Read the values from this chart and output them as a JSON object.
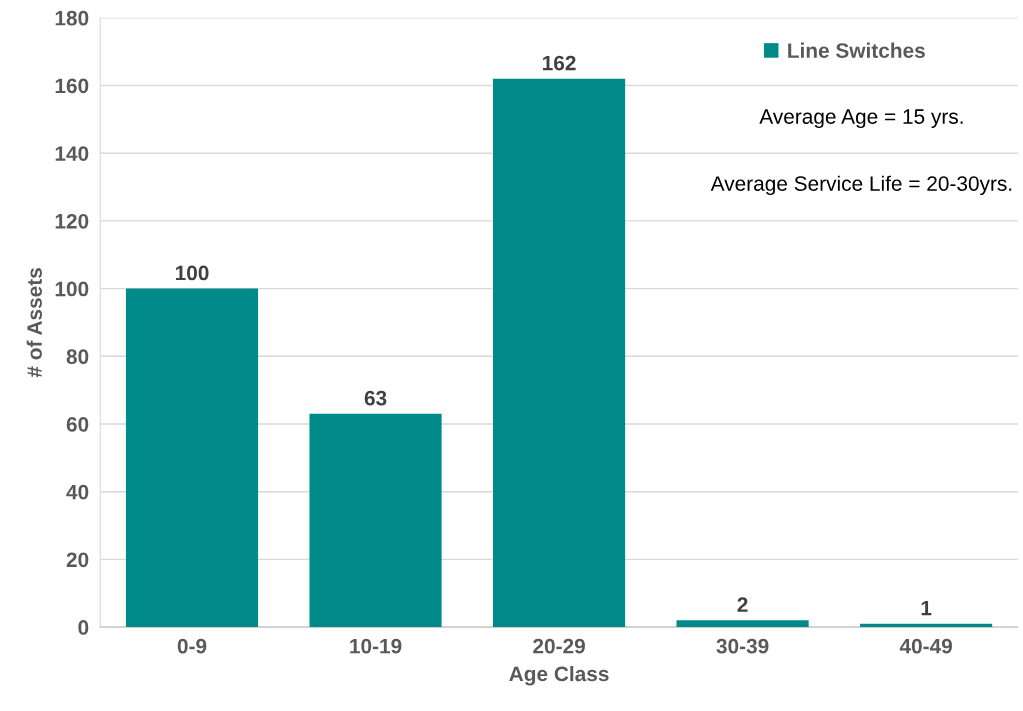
{
  "chart_data": {
    "type": "bar",
    "xlabel": "Age Class",
    "ylabel": "# of Assets",
    "categories": [
      "0-9",
      "10-19",
      "20-29",
      "30-39",
      "40-49"
    ],
    "series": [
      {
        "name": "Line Switches",
        "color": "#008b8b",
        "values": [
          100,
          63,
          162,
          2,
          1
        ]
      }
    ],
    "ylim": [
      0,
      180
    ],
    "yticks": [
      0,
      20,
      40,
      60,
      80,
      100,
      120,
      140,
      160,
      180
    ],
    "grid": "y",
    "legend": "top right",
    "data_labels": true,
    "annotations": [
      "Average Age = 15 yrs.",
      "Average Service Life = 20-30yrs."
    ]
  }
}
